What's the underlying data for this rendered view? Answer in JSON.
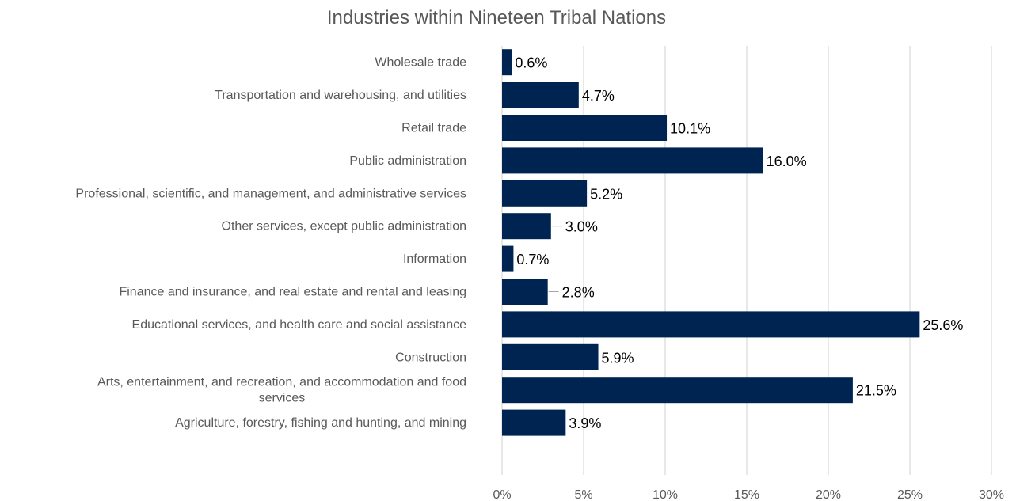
{
  "chart_data": {
    "type": "bar",
    "orientation": "horizontal",
    "title": "Industries within Nineteen Tribal Nations",
    "xlabel": "",
    "ylabel": "",
    "categories": [
      "Wholesale trade",
      "Transportation and warehousing, and utilities",
      "Retail trade",
      "Public administration",
      "Professional, scientific, and management, and administrative services",
      "Other services, except public administration",
      "Information",
      "Finance and insurance, and real estate and rental and leasing",
      "Educational services, and health care and social assistance",
      "Construction",
      "Arts, entertainment, and recreation, and accommodation and food services",
      "Agriculture, forestry, fishing and hunting, and mining"
    ],
    "category_lines": [
      [
        "Wholesale trade"
      ],
      [
        "Transportation and warehousing, and utilities"
      ],
      [
        "Retail trade"
      ],
      [
        "Public administration"
      ],
      [
        "Professional, scientific, and management, and administrative services"
      ],
      [
        "Other services, except public administration"
      ],
      [
        "Information"
      ],
      [
        "Finance and insurance, and real estate and rental and leasing"
      ],
      [
        "Educational services, and health care and social assistance"
      ],
      [
        "Construction"
      ],
      [
        "Arts, entertainment, and recreation, and accommodation and food",
        "services"
      ],
      [
        "Agriculture, forestry, fishing and hunting, and mining"
      ]
    ],
    "values": [
      0.6,
      4.7,
      10.1,
      16.0,
      5.2,
      3.0,
      0.7,
      2.8,
      25.6,
      5.9,
      21.5,
      3.9
    ],
    "data_labels": [
      "0.6%",
      "4.7%",
      "10.1%",
      "16.0%",
      "5.2%",
      "3.0%",
      "0.7%",
      "2.8%",
      "25.6%",
      "5.9%",
      "21.5%",
      "3.9%"
    ],
    "xlim": [
      0,
      30
    ],
    "xticks": [
      0,
      5,
      10,
      15,
      20,
      25,
      30
    ],
    "xtick_labels": [
      "0%",
      "5%",
      "10%",
      "15%",
      "20%",
      "25%",
      "30%"
    ],
    "grid": "vertical",
    "legend": "none",
    "bar_color": "#002452",
    "text_color": "#595959",
    "grid_color": "#d9d9d9"
  }
}
